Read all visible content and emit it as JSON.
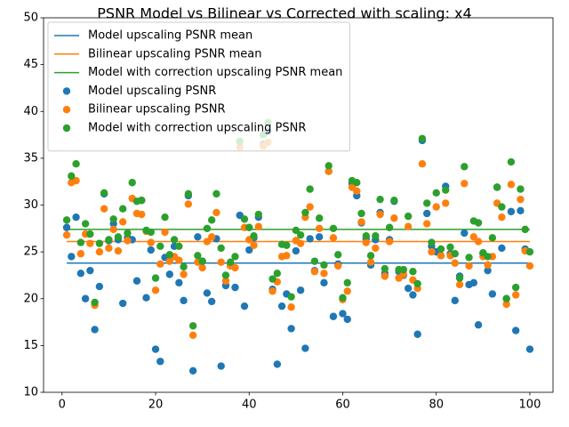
{
  "chart_data": {
    "type": "scatter",
    "title": "PSNR Model vs Bilinear vs Corrected with scaling: x4",
    "xlim": [
      -3.95,
      104.95
    ],
    "xticks": [
      0,
      20,
      40,
      60,
      80,
      100
    ],
    "ylim": [
      10,
      50
    ],
    "yticks": [
      10,
      15,
      20,
      25,
      30,
      35,
      40,
      45,
      50
    ],
    "legend": "upper left",
    "x": [
      1,
      2,
      3,
      4,
      5,
      6,
      7,
      8,
      9,
      10,
      11,
      12,
      13,
      14,
      15,
      16,
      17,
      18,
      19,
      20,
      21,
      22,
      23,
      24,
      25,
      26,
      27,
      28,
      29,
      30,
      31,
      32,
      33,
      34,
      35,
      36,
      37,
      38,
      39,
      40,
      41,
      42,
      43,
      44,
      45,
      46,
      47,
      48,
      49,
      50,
      51,
      52,
      53,
      54,
      55,
      56,
      57,
      58,
      59,
      60,
      61,
      62,
      63,
      64,
      65,
      66,
      67,
      68,
      69,
      70,
      71,
      72,
      73,
      74,
      75,
      76,
      77,
      78,
      79,
      80,
      81,
      82,
      83,
      84,
      85,
      86,
      87,
      88,
      89,
      90,
      91,
      92,
      93,
      94,
      95,
      96,
      97,
      98,
      99,
      100
    ],
    "mean_lines": [
      {
        "name": "Model upscaling PSNR mean",
        "color": "#1f77b4",
        "value": 23.8
      },
      {
        "name": "Bilinear upscaling PSNR mean",
        "color": "#ff7f0e",
        "value": 26.1
      },
      {
        "name": "Model with correction upscaling PSNR mean",
        "color": "#2ca02c",
        "value": 27.4
      }
    ],
    "series": [
      {
        "name": "Model upscaling PSNR",
        "color": "#1f77b4",
        "values": [
          27.6,
          24.5,
          28.7,
          22.7,
          20.0,
          23.0,
          16.7,
          21.3,
          31.2,
          26.2,
          28.0,
          26.3,
          19.5,
          26.5,
          26.3,
          21.9,
          30.5,
          20.1,
          25.2,
          14.6,
          13.3,
          24.4,
          22.6,
          25.6,
          21.7,
          19.8,
          31.0,
          12.3,
          26.6,
          24.0,
          20.6,
          19.7,
          26.4,
          12.8,
          21.4,
          23.6,
          21.2,
          28.9,
          19.2,
          25.2,
          26.5,
          28.7,
          36.5,
          37.9,
          21.0,
          13.0,
          19.2,
          20.5,
          16.8,
          25.1,
          20.9,
          14.7,
          26.4,
          23.0,
          26.6,
          21.7,
          33.6,
          18.1,
          23.7,
          18.4,
          17.8,
          32.3,
          31.0,
          28.1,
          26.4,
          23.6,
          26.3,
          29.2,
          22.7,
          26.3,
          30.4,
          22.9,
          22.5,
          21.1,
          20.4,
          16.2,
          36.9,
          29.1,
          25.6,
          25.0,
          24.6,
          32.0,
          24.8,
          19.8,
          22.4,
          27.0,
          21.5,
          21.7,
          17.2,
          24.8,
          23.0,
          20.5,
          31.9,
          25.4,
          20.0,
          29.3,
          16.6,
          29.4,
          25.3,
          14.6
        ]
      },
      {
        "name": "Bilinear upscaling PSNR",
        "color": "#ff7f0e",
        "values": [
          26.8,
          32.4,
          32.6,
          24.8,
          26.9,
          25.9,
          19.3,
          25.0,
          29.6,
          25.4,
          27.4,
          25.1,
          28.2,
          26.2,
          30.7,
          29.1,
          29.0,
          27.2,
          26.0,
          20.9,
          23.7,
          27.1,
          24.0,
          24.5,
          24.1,
          22.6,
          30.1,
          16.1,
          23.9,
          23.3,
          26.1,
          26.6,
          29.2,
          23.9,
          21.9,
          23.5,
          23.3,
          36.2,
          27.6,
          26.3,
          25.7,
          27.7,
          36.3,
          36.7,
          20.8,
          21.8,
          24.5,
          24.6,
          19.1,
          26.2,
          25.9,
          28.7,
          29.8,
          22.9,
          27.5,
          22.7,
          33.6,
          26.5,
          23.5,
          19.9,
          20.8,
          31.9,
          31.5,
          28.2,
          26.0,
          23.9,
          25.4,
          29.0,
          22.4,
          26.1,
          28.6,
          22.2,
          22.6,
          27.7,
          22.0,
          21.1,
          34.4,
          28.0,
          25.0,
          29.8,
          24.6,
          30.2,
          24.6,
          23.8,
          21.5,
          32.3,
          23.5,
          26.6,
          26.1,
          24.5,
          23.6,
          24.5,
          30.2,
          28.7,
          19.4,
          32.2,
          20.4,
          30.6,
          25.1,
          23.5
        ]
      },
      {
        "name": "Model with correction upscaling PSNR",
        "color": "#2ca02c",
        "values": [
          28.4,
          33.1,
          34.4,
          26.0,
          28.0,
          26.9,
          19.6,
          25.9,
          31.3,
          26.3,
          28.5,
          26.6,
          29.6,
          27.0,
          32.4,
          30.4,
          30.5,
          27.3,
          27.1,
          22.2,
          25.6,
          28.7,
          24.7,
          26.3,
          25.6,
          23.4,
          31.2,
          17.1,
          24.6,
          24.0,
          27.5,
          28.4,
          31.2,
          25.4,
          22.5,
          23.9,
          24.5,
          36.8,
          28.5,
          27.6,
          26.7,
          29.0,
          37.5,
          38.8,
          22.1,
          22.7,
          25.8,
          25.7,
          20.2,
          27.3,
          26.8,
          29.2,
          31.7,
          24.0,
          28.6,
          23.6,
          34.2,
          27.5,
          24.7,
          20.1,
          21.7,
          32.6,
          32.4,
          29.1,
          26.7,
          24.6,
          26.7,
          30.6,
          23.2,
          27.6,
          30.5,
          23.1,
          23.1,
          28.8,
          22.9,
          21.6,
          37.1,
          30.2,
          26.0,
          31.3,
          25.3,
          31.6,
          25.5,
          24.8,
          22.2,
          34.1,
          24.4,
          28.3,
          28.1,
          24.9,
          24.5,
          26.5,
          31.9,
          29.8,
          20.0,
          34.6,
          21.2,
          31.7,
          27.4,
          25.0
        ]
      }
    ]
  }
}
